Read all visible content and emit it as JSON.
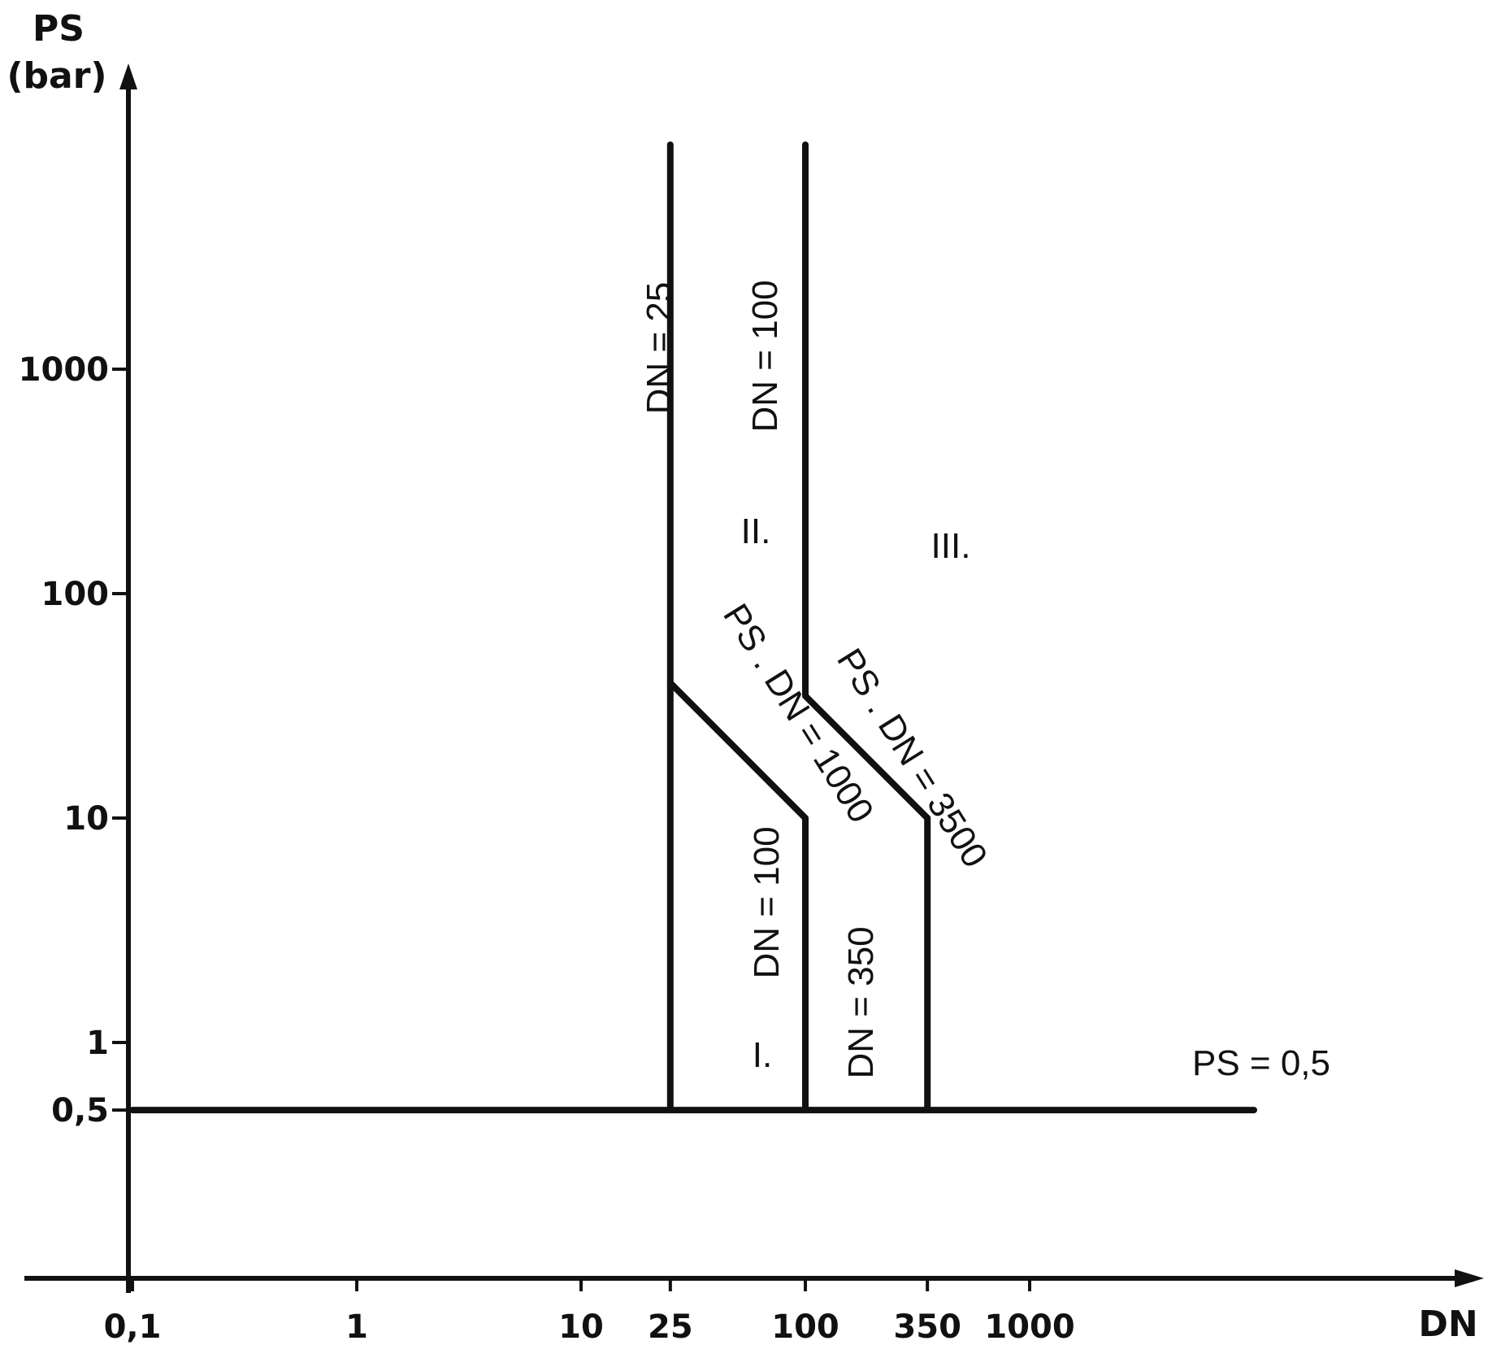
{
  "chart_data": {
    "type": "line",
    "title": "",
    "ylabel_line1": "PS",
    "ylabel_line2": "(bar)",
    "xlabel": "DN",
    "x_scale": "log",
    "y_scale": "log",
    "x_ticks": [
      {
        "value": 0.1,
        "label": "0,1"
      },
      {
        "value": 1,
        "label": "1"
      },
      {
        "value": 10,
        "label": "10"
      },
      {
        "value": 25,
        "label": "25"
      },
      {
        "value": 100,
        "label": "100"
      },
      {
        "value": 350,
        "label": "350"
      },
      {
        "value": 1000,
        "label": "1000"
      }
    ],
    "y_ticks": [
      {
        "value": 0.5,
        "label": "0,5"
      },
      {
        "value": 1,
        "label": "1"
      },
      {
        "value": 10,
        "label": "10"
      },
      {
        "value": 100,
        "label": "100"
      },
      {
        "value": 1000,
        "label": "1000"
      }
    ],
    "series": [
      {
        "points": [
          [
            25,
            0.5
          ],
          [
            25,
            40
          ],
          [
            25,
            10000
          ]
        ]
      },
      {
        "points": [
          [
            100,
            0.5
          ],
          [
            100,
            10
          ],
          [
            25,
            40
          ]
        ]
      },
      {
        "points": [
          [
            350,
            0.5
          ],
          [
            350,
            10
          ],
          [
            100,
            35
          ],
          [
            100,
            10000
          ]
        ]
      },
      {
        "points": [
          [
            0.1,
            0.5
          ],
          [
            10000,
            0.5
          ]
        ]
      }
    ],
    "annotations": [
      {
        "text": "DN = 25",
        "x": 25,
        "y": 1000
      },
      {
        "text": "DN = 100",
        "x": 100,
        "y": 1000
      },
      {
        "text": "II.",
        "x": 50,
        "y": 150
      },
      {
        "text": "III.",
        "x": 700,
        "y": 150
      },
      {
        "text": "PS . DN = 1000",
        "x": 50,
        "y": 20
      },
      {
        "text": "PS . DN = 3500",
        "x": 180,
        "y": 20
      },
      {
        "text": "DN = 100",
        "x": 50,
        "y": 3
      },
      {
        "text": "DN = 350",
        "x": 200,
        "y": 1.5
      },
      {
        "text": "I.",
        "x": 50,
        "y": 1
      },
      {
        "text": "PS = 0,5",
        "x": 3000,
        "y": 0.6
      }
    ]
  }
}
